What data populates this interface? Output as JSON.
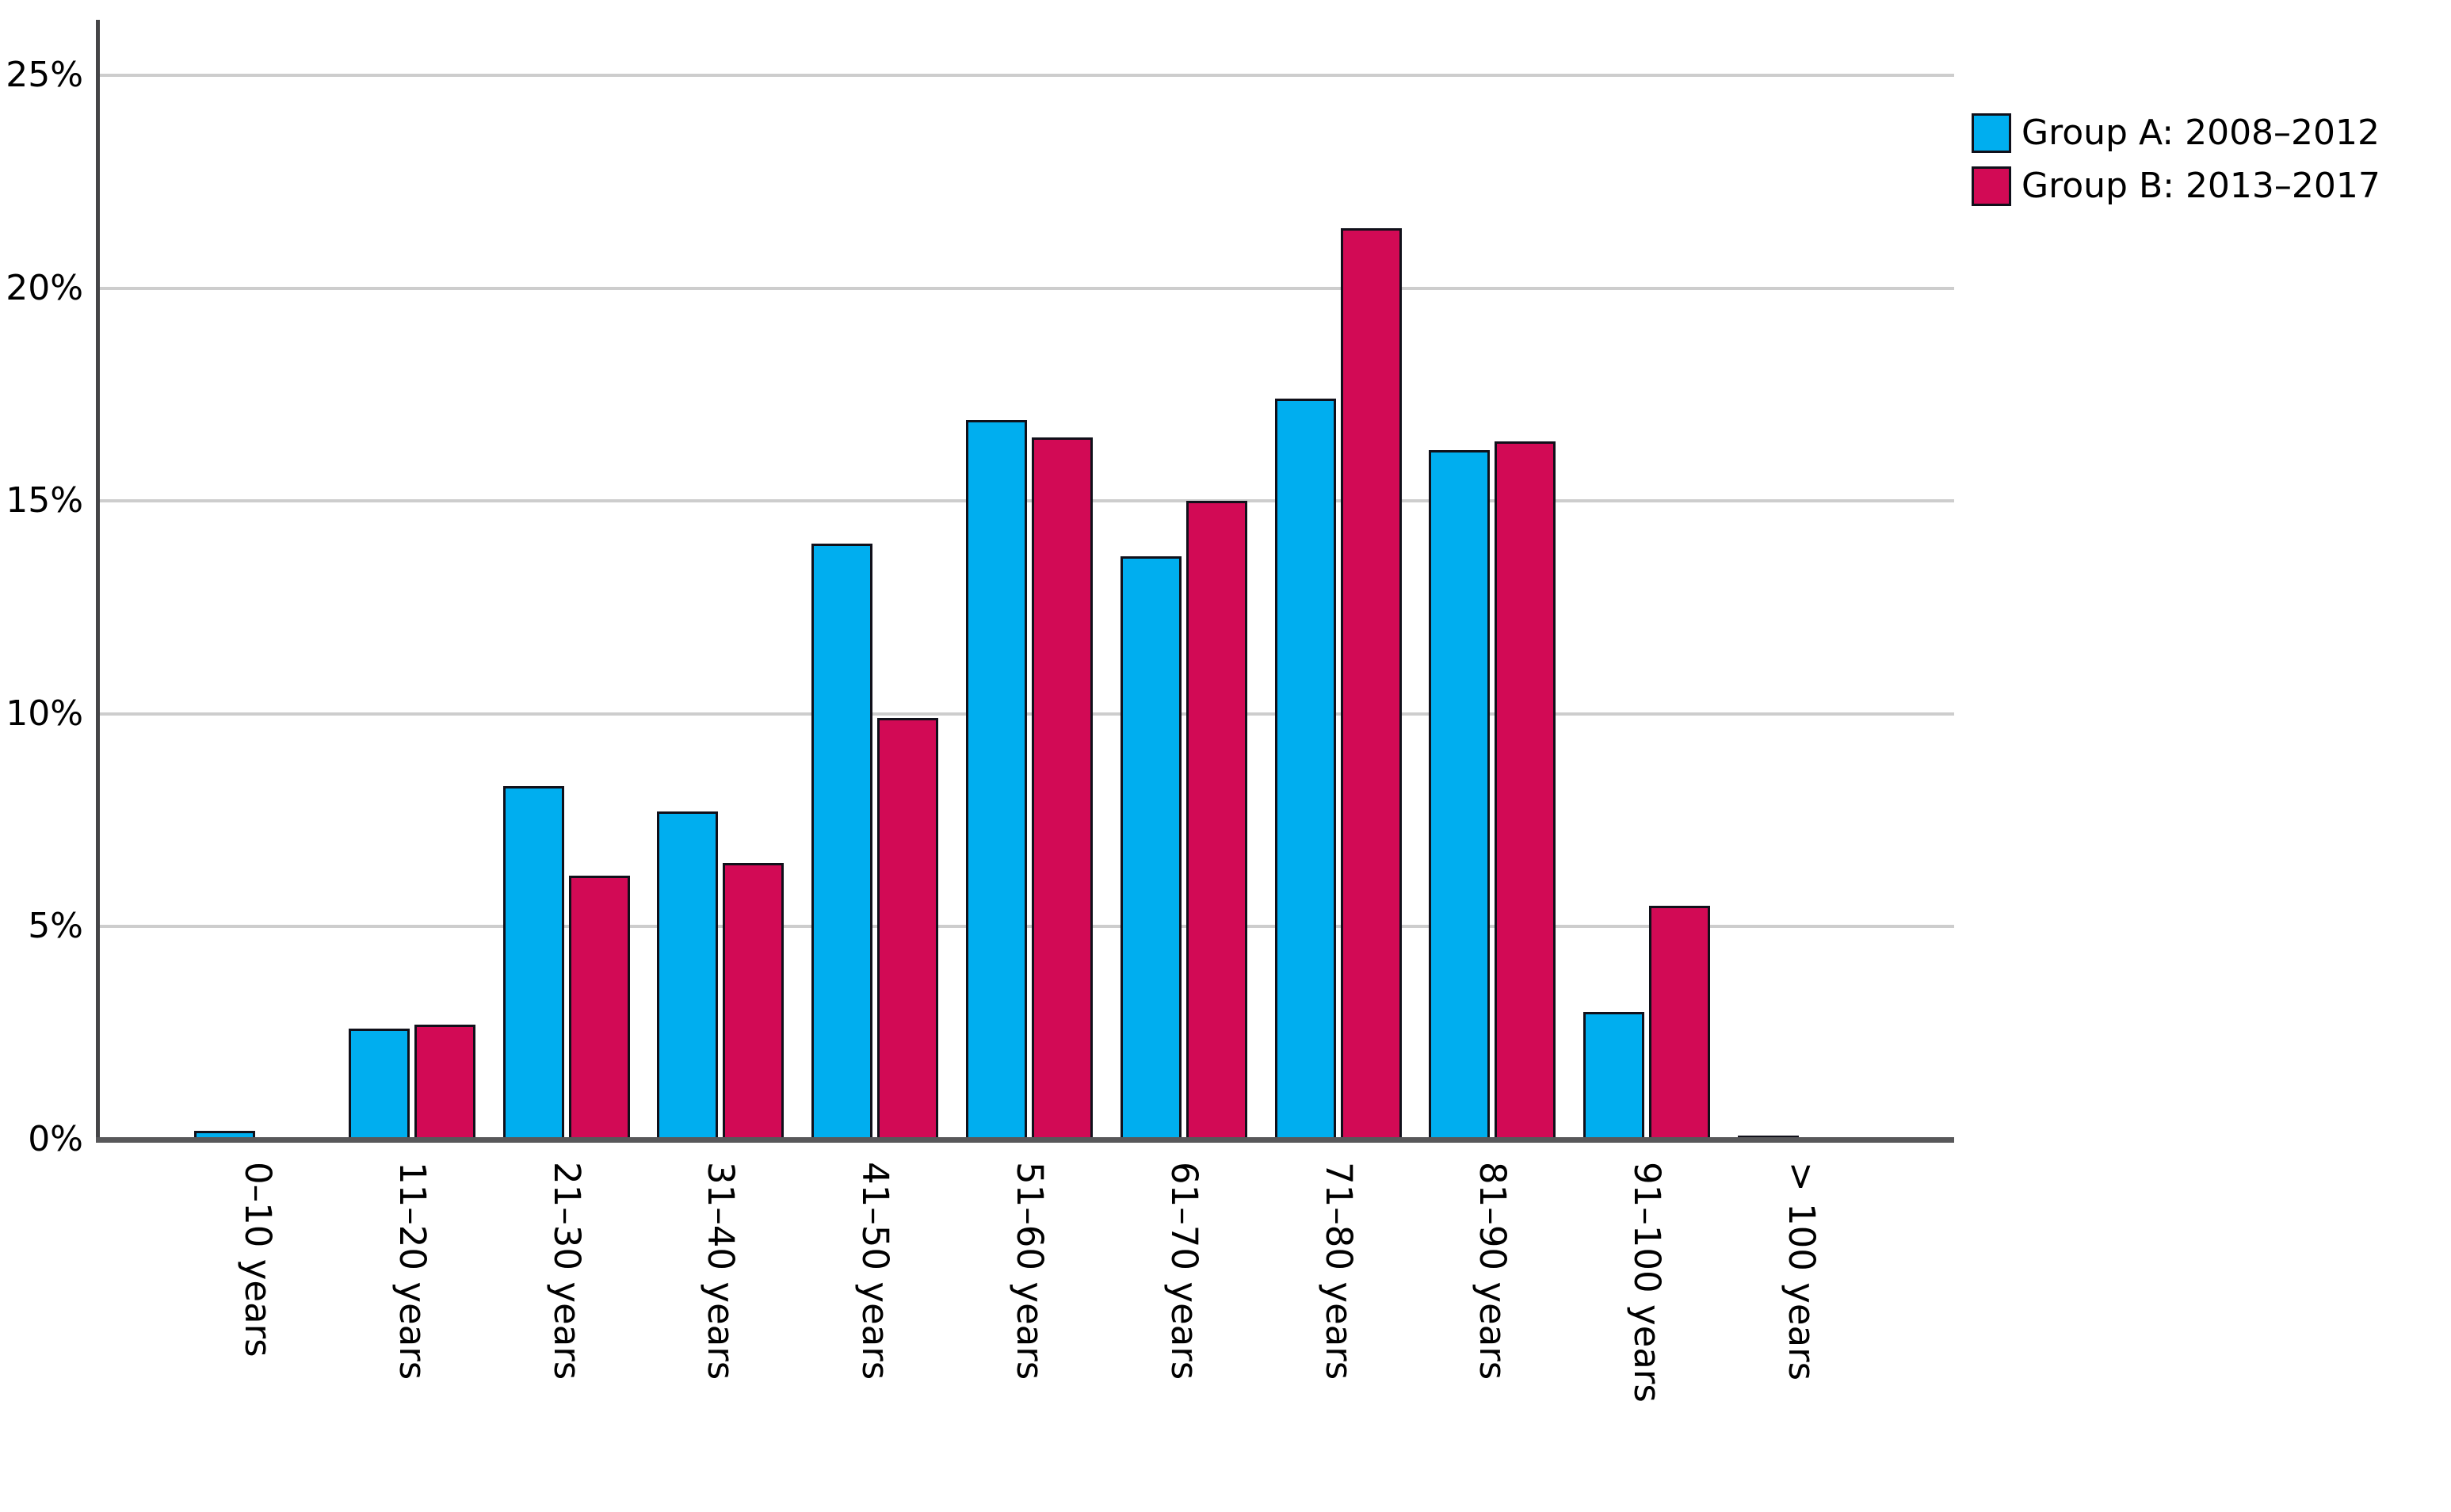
{
  "chart_data": {
    "type": "bar",
    "title": "",
    "xlabel": "",
    "ylabel": "",
    "categories": [
      "0–10 years",
      "11–20 years",
      "21–30 years",
      "31–40 years",
      "41–50 years",
      "51–60 years",
      "61–70 years",
      "71–80 years",
      "81–90 years",
      "91–100 years",
      "> 100 years"
    ],
    "series": [
      {
        "name": "Group A: 2008–2012",
        "color": "#00AEEF",
        "values": [
          0.2,
          2.6,
          8.3,
          7.7,
          14.0,
          16.9,
          13.7,
          17.4,
          16.2,
          3.0,
          0.1
        ]
      },
      {
        "name": "Group B: 2013–2017",
        "color": "#D20A55",
        "values": [
          0.05,
          2.7,
          6.2,
          6.5,
          9.9,
          16.5,
          15.0,
          21.4,
          16.4,
          5.5,
          0.05
        ]
      }
    ],
    "ylim": [
      0,
      26
    ],
    "y_ticks": [
      0,
      5,
      10,
      15,
      20,
      25
    ],
    "y_tick_labels": [
      "0%",
      "5%",
      "10%",
      "15%",
      "20%",
      "25%"
    ],
    "grid": "horizontal",
    "legend_position": "top-right",
    "x_tick_rotation_deg": 90
  },
  "colors": {
    "background": "#FFFFFF",
    "gridline": "#CDCDCD",
    "y_axis": "#454547",
    "x_axis": "#58585A",
    "bar_border": "#10101A",
    "text": "#000000"
  }
}
